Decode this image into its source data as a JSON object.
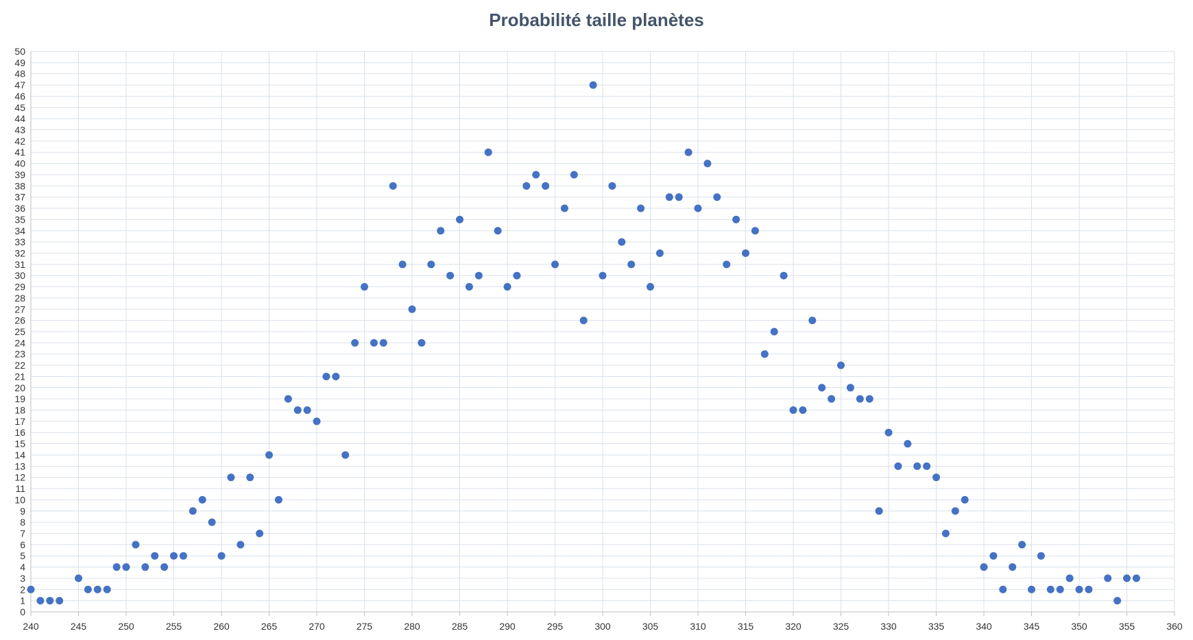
{
  "chart_data": {
    "type": "scatter",
    "title": "Probabilité taille planètes",
    "xlabel": "",
    "ylabel": "",
    "xlim": [
      240,
      360
    ],
    "ylim": [
      0,
      50
    ],
    "x_tick_step": 5,
    "y_tick_step": 1,
    "grid": true,
    "legend": "none",
    "marker_color": "#4472C4",
    "grid_color": "#D9E1EA",
    "title_color": "#44546A",
    "points": [
      [
        240,
        2
      ],
      [
        241,
        1
      ],
      [
        242,
        1
      ],
      [
        243,
        1
      ],
      [
        245,
        3
      ],
      [
        246,
        2
      ],
      [
        247,
        2
      ],
      [
        248,
        2
      ],
      [
        249,
        4
      ],
      [
        250,
        4
      ],
      [
        251,
        6
      ],
      [
        252,
        4
      ],
      [
        253,
        5
      ],
      [
        254,
        4
      ],
      [
        255,
        5
      ],
      [
        256,
        5
      ],
      [
        257,
        9
      ],
      [
        258,
        10
      ],
      [
        259,
        8
      ],
      [
        260,
        5
      ],
      [
        261,
        12
      ],
      [
        262,
        6
      ],
      [
        263,
        12
      ],
      [
        264,
        7
      ],
      [
        265,
        14
      ],
      [
        266,
        10
      ],
      [
        267,
        19
      ],
      [
        268,
        18
      ],
      [
        269,
        18
      ],
      [
        270,
        17
      ],
      [
        271,
        21
      ],
      [
        272,
        21
      ],
      [
        273,
        14
      ],
      [
        274,
        24
      ],
      [
        275,
        29
      ],
      [
        276,
        24
      ],
      [
        277,
        24
      ],
      [
        278,
        38
      ],
      [
        279,
        31
      ],
      [
        280,
        27
      ],
      [
        281,
        24
      ],
      [
        282,
        31
      ],
      [
        283,
        34
      ],
      [
        284,
        30
      ],
      [
        285,
        35
      ],
      [
        286,
        29
      ],
      [
        287,
        30
      ],
      [
        288,
        41
      ],
      [
        289,
        34
      ],
      [
        290,
        29
      ],
      [
        291,
        30
      ],
      [
        292,
        38
      ],
      [
        293,
        39
      ],
      [
        294,
        38
      ],
      [
        295,
        31
      ],
      [
        296,
        36
      ],
      [
        297,
        39
      ],
      [
        298,
        26
      ],
      [
        299,
        47
      ],
      [
        300,
        30
      ],
      [
        301,
        38
      ],
      [
        302,
        33
      ],
      [
        303,
        31
      ],
      [
        304,
        36
      ],
      [
        305,
        29
      ],
      [
        306,
        32
      ],
      [
        307,
        37
      ],
      [
        308,
        37
      ],
      [
        309,
        41
      ],
      [
        310,
        36
      ],
      [
        311,
        40
      ],
      [
        312,
        37
      ],
      [
        313,
        31
      ],
      [
        314,
        35
      ],
      [
        315,
        32
      ],
      [
        316,
        34
      ],
      [
        317,
        23
      ],
      [
        318,
        25
      ],
      [
        319,
        30
      ],
      [
        320,
        18
      ],
      [
        321,
        18
      ],
      [
        322,
        26
      ],
      [
        323,
        20
      ],
      [
        324,
        19
      ],
      [
        325,
        22
      ],
      [
        326,
        20
      ],
      [
        327,
        19
      ],
      [
        328,
        19
      ],
      [
        329,
        9
      ],
      [
        330,
        16
      ],
      [
        331,
        13
      ],
      [
        332,
        15
      ],
      [
        333,
        13
      ],
      [
        334,
        13
      ],
      [
        335,
        12
      ],
      [
        336,
        7
      ],
      [
        337,
        9
      ],
      [
        338,
        10
      ],
      [
        340,
        4
      ],
      [
        341,
        5
      ],
      [
        342,
        2
      ],
      [
        343,
        4
      ],
      [
        344,
        6
      ],
      [
        345,
        2
      ],
      [
        346,
        5
      ],
      [
        347,
        2
      ],
      [
        348,
        2
      ],
      [
        349,
        3
      ],
      [
        350,
        2
      ],
      [
        351,
        2
      ],
      [
        353,
        3
      ],
      [
        354,
        1
      ],
      [
        355,
        3
      ],
      [
        356,
        3
      ]
    ]
  }
}
